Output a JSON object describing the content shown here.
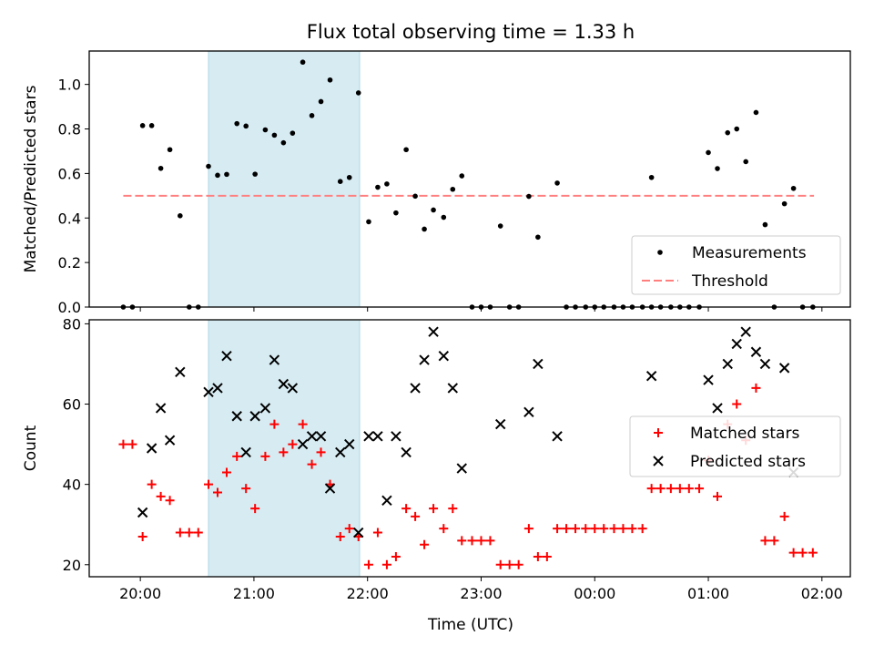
{
  "figure_title": "Flux total observing time = 1.33 h",
  "colors": {
    "span": "#add8e6",
    "measurement": "#000000",
    "threshold": "#ff7f7f",
    "matched": "#ff0000",
    "predicted": "#000000"
  },
  "x_axis": {
    "label": "Time (UTC)",
    "tick_labels": [
      "20:00",
      "21:00",
      "22:00",
      "23:00",
      "00:00",
      "01:00",
      "02:00"
    ]
  },
  "chart_data": [
    {
      "type": "scatter",
      "ylabel": "Matched/Predicted stars",
      "ylim": [
        0,
        1.15
      ],
      "xlim": [
        -0.45,
        6.25
      ],
      "yticks": [
        "0.0",
        "0.2",
        "0.4",
        "0.6",
        "0.8",
        "1.0"
      ],
      "shaded_span": [
        0.6,
        1.93
      ],
      "threshold": {
        "name": "Threshold",
        "value": 0.5,
        "x_range": [
          -0.15,
          5.93
        ]
      },
      "legend": {
        "placement": "lower right",
        "entries": [
          "Measurements",
          "Threshold"
        ]
      },
      "series": [
        {
          "name": "Measurements",
          "points": [
            [
              -0.15,
              0.0
            ],
            [
              -0.07,
              0.0
            ],
            [
              0.02,
              0.815
            ],
            [
              0.1,
              0.815
            ],
            [
              0.18,
              0.623
            ],
            [
              0.26,
              0.707
            ],
            [
              0.35,
              0.41
            ],
            [
              0.43,
              0.0
            ],
            [
              0.51,
              0.0
            ],
            [
              0.6,
              0.632
            ],
            [
              0.68,
              0.592
            ],
            [
              0.76,
              0.596
            ],
            [
              0.85,
              0.824
            ],
            [
              0.93,
              0.813
            ],
            [
              1.01,
              0.597
            ],
            [
              1.1,
              0.796
            ],
            [
              1.18,
              0.772
            ],
            [
              1.26,
              0.738
            ],
            [
              1.34,
              0.781
            ],
            [
              1.43,
              1.1
            ],
            [
              1.51,
              0.86
            ],
            [
              1.59,
              0.923
            ],
            [
              1.67,
              1.02
            ],
            [
              1.76,
              0.564
            ],
            [
              1.84,
              0.582
            ],
            [
              1.92,
              0.962
            ],
            [
              2.01,
              0.383
            ],
            [
              2.09,
              0.538
            ],
            [
              2.17,
              0.553
            ],
            [
              2.25,
              0.423
            ],
            [
              2.34,
              0.707
            ],
            [
              2.42,
              0.498
            ],
            [
              2.5,
              0.35
            ],
            [
              2.58,
              0.436
            ],
            [
              2.67,
              0.403
            ],
            [
              2.75,
              0.529
            ],
            [
              2.83,
              0.589
            ],
            [
              2.92,
              0.0
            ],
            [
              3.0,
              0.0
            ],
            [
              3.08,
              0.0
            ],
            [
              3.17,
              0.364
            ],
            [
              3.25,
              0.0
            ],
            [
              3.33,
              0.0
            ],
            [
              3.42,
              0.497
            ],
            [
              3.5,
              0.314
            ],
            [
              3.67,
              0.557
            ],
            [
              3.75,
              0.0
            ],
            [
              3.83,
              0.0
            ],
            [
              3.92,
              0.0
            ],
            [
              4.0,
              0.0
            ],
            [
              4.08,
              0.0
            ],
            [
              4.17,
              0.0
            ],
            [
              4.25,
              0.0
            ],
            [
              4.33,
              0.0
            ],
            [
              4.42,
              0.0
            ],
            [
              4.5,
              0.0
            ],
            [
              4.58,
              0.0
            ],
            [
              4.67,
              0.0
            ],
            [
              4.75,
              0.0
            ],
            [
              4.83,
              0.0
            ],
            [
              4.92,
              0.0
            ],
            [
              4.5,
              0.582
            ],
            [
              5.0,
              0.694
            ],
            [
              5.08,
              0.622
            ],
            [
              5.17,
              0.783
            ],
            [
              5.25,
              0.8
            ],
            [
              5.33,
              0.653
            ],
            [
              5.42,
              0.874
            ],
            [
              5.5,
              0.37
            ],
            [
              5.58,
              0.0
            ],
            [
              5.67,
              0.464
            ],
            [
              5.75,
              0.533
            ],
            [
              5.83,
              0.0
            ],
            [
              5.92,
              0.0
            ]
          ]
        }
      ]
    },
    {
      "type": "scatter",
      "ylabel": "Count",
      "ylim": [
        17,
        81
      ],
      "xlim": [
        -0.45,
        6.25
      ],
      "yticks": [
        "20",
        "40",
        "60",
        "80"
      ],
      "shaded_span": [
        0.6,
        1.93
      ],
      "legend": {
        "placement": "center right",
        "entries": [
          "Matched stars",
          "Predicted stars"
        ]
      },
      "series": [
        {
          "name": "Matched stars",
          "points": [
            [
              -0.15,
              50
            ],
            [
              -0.07,
              50
            ],
            [
              0.02,
              27
            ],
            [
              0.1,
              40
            ],
            [
              0.18,
              37
            ],
            [
              0.26,
              36
            ],
            [
              0.35,
              28
            ],
            [
              0.43,
              28
            ],
            [
              0.51,
              28
            ],
            [
              0.6,
              40
            ],
            [
              0.68,
              38
            ],
            [
              0.76,
              43
            ],
            [
              0.85,
              47
            ],
            [
              0.93,
              39
            ],
            [
              1.01,
              34
            ],
            [
              1.1,
              47
            ],
            [
              1.18,
              55
            ],
            [
              1.26,
              48
            ],
            [
              1.34,
              50
            ],
            [
              1.43,
              55
            ],
            [
              1.51,
              45
            ],
            [
              1.59,
              48
            ],
            [
              1.67,
              40
            ],
            [
              1.76,
              27
            ],
            [
              1.84,
              29
            ],
            [
              1.92,
              27
            ],
            [
              2.01,
              20
            ],
            [
              2.09,
              28
            ],
            [
              2.17,
              20
            ],
            [
              2.25,
              22
            ],
            [
              2.34,
              34
            ],
            [
              2.42,
              32
            ],
            [
              2.5,
              25
            ],
            [
              2.58,
              34
            ],
            [
              2.67,
              29
            ],
            [
              2.75,
              34
            ],
            [
              2.83,
              26
            ],
            [
              2.92,
              26
            ],
            [
              3.0,
              26
            ],
            [
              3.08,
              26
            ],
            [
              3.17,
              20
            ],
            [
              3.25,
              20
            ],
            [
              3.33,
              20
            ],
            [
              3.42,
              29
            ],
            [
              3.5,
              22
            ],
            [
              3.58,
              22
            ],
            [
              3.67,
              29
            ],
            [
              3.75,
              29
            ],
            [
              3.83,
              29
            ],
            [
              3.92,
              29
            ],
            [
              4.0,
              29
            ],
            [
              4.08,
              29
            ],
            [
              4.17,
              29
            ],
            [
              4.25,
              29
            ],
            [
              4.33,
              29
            ],
            [
              4.42,
              29
            ],
            [
              4.5,
              39
            ],
            [
              4.58,
              39
            ],
            [
              4.67,
              39
            ],
            [
              4.75,
              39
            ],
            [
              4.83,
              39
            ],
            [
              4.92,
              39
            ],
            [
              5.0,
              46
            ],
            [
              5.08,
              37
            ],
            [
              5.17,
              55
            ],
            [
              5.25,
              60
            ],
            [
              5.33,
              51
            ],
            [
              5.42,
              64
            ],
            [
              5.5,
              26
            ],
            [
              5.58,
              26
            ],
            [
              5.67,
              32
            ],
            [
              5.75,
              23
            ],
            [
              5.83,
              23
            ],
            [
              5.92,
              23
            ]
          ]
        },
        {
          "name": "Predicted stars",
          "points": [
            [
              0.02,
              33
            ],
            [
              0.1,
              49
            ],
            [
              0.18,
              59
            ],
            [
              0.26,
              51
            ],
            [
              0.35,
              68
            ],
            [
              0.6,
              63
            ],
            [
              0.68,
              64
            ],
            [
              0.76,
              72
            ],
            [
              0.85,
              57
            ],
            [
              0.93,
              48
            ],
            [
              1.01,
              57
            ],
            [
              1.1,
              59
            ],
            [
              1.18,
              71
            ],
            [
              1.26,
              65
            ],
            [
              1.34,
              64
            ],
            [
              1.43,
              50
            ],
            [
              1.51,
              52
            ],
            [
              1.59,
              52
            ],
            [
              1.67,
              39
            ],
            [
              1.76,
              48
            ],
            [
              1.84,
              50
            ],
            [
              1.92,
              28
            ],
            [
              2.01,
              52
            ],
            [
              2.09,
              52
            ],
            [
              2.17,
              36
            ],
            [
              2.25,
              52
            ],
            [
              2.34,
              48
            ],
            [
              2.42,
              64
            ],
            [
              2.5,
              71
            ],
            [
              2.58,
              78
            ],
            [
              2.67,
              72
            ],
            [
              2.75,
              64
            ],
            [
              2.83,
              44
            ],
            [
              3.17,
              55
            ],
            [
              3.42,
              58
            ],
            [
              3.5,
              70
            ],
            [
              3.67,
              52
            ],
            [
              4.5,
              67
            ],
            [
              5.0,
              66
            ],
            [
              5.08,
              59
            ],
            [
              5.17,
              70
            ],
            [
              5.25,
              75
            ],
            [
              5.33,
              78
            ],
            [
              5.42,
              73
            ],
            [
              5.5,
              70
            ],
            [
              5.67,
              69
            ],
            [
              5.75,
              43
            ]
          ]
        }
      ]
    }
  ]
}
